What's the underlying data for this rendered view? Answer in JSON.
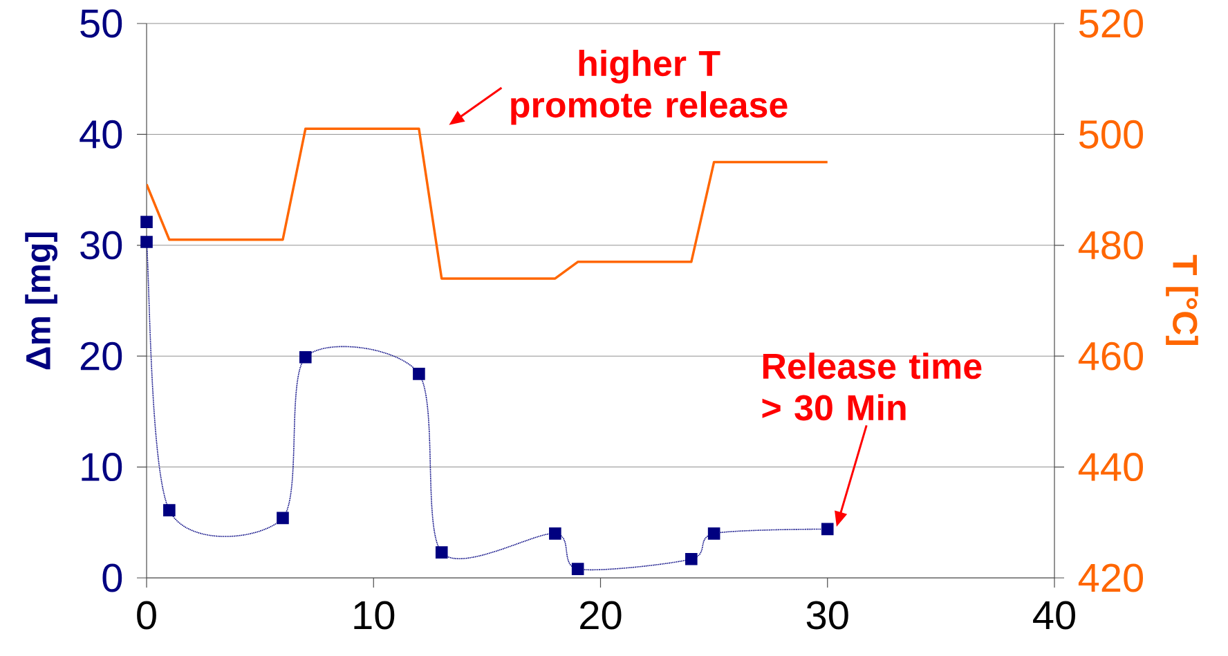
{
  "chart_data": {
    "type": "line",
    "xlim": [
      0,
      40
    ],
    "xticks": [
      0,
      10,
      20,
      30,
      40
    ],
    "ylim": [
      0,
      50
    ],
    "yticks": [
      0,
      10,
      20,
      30,
      40,
      50
    ],
    "y2lim": [
      420,
      520
    ],
    "y2ticks": [
      420,
      440,
      460,
      480,
      500,
      520
    ],
    "ylabel": "Δm [mg]",
    "y2label": "T [°C]",
    "grid": "y",
    "series": [
      {
        "color": "#000080",
        "marker": "square",
        "line_style": "dotted",
        "x": [
          0,
          0,
          1,
          6,
          7,
          12,
          13,
          18,
          19,
          24,
          25,
          30
        ],
        "values": [
          32.1,
          30.3,
          6.1,
          5.4,
          19.9,
          18.4,
          2.3,
          4.0,
          0.8,
          1.7,
          4.0,
          4.4
        ]
      },
      {
        "color": "#ff6600",
        "axis": "y2",
        "marker": "none",
        "line_style": "solid",
        "x": [
          0,
          1,
          6,
          7,
          12,
          13,
          18,
          19,
          24,
          25,
          30
        ],
        "values": [
          491,
          481,
          481,
          501,
          501,
          474,
          474,
          477,
          477,
          495,
          495
        ]
      }
    ],
    "annotations": [
      "higher T promote release",
      "Release time > 30 Min"
    ]
  }
}
